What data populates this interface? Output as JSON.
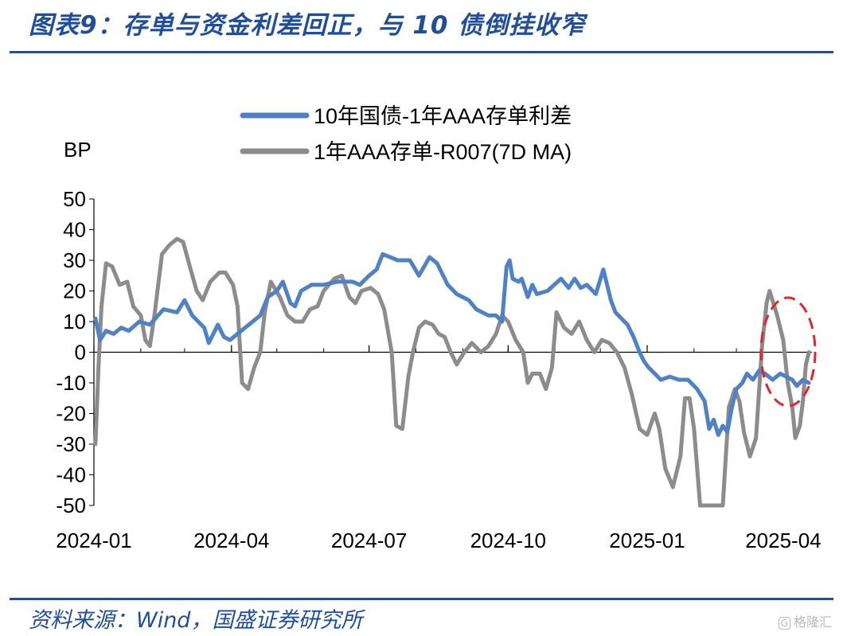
{
  "header": {
    "title": "图表9：存单与资金利差回正，与 10 债倒挂收窄"
  },
  "footer": {
    "source": "资料来源：Wind，国盛证券研究所",
    "watermark": "格隆汇",
    "watermark_glyph": "G"
  },
  "colors": {
    "title": "#1f4e9c",
    "series_blue": "#4f81c7",
    "series_gray": "#8c8c8c",
    "highlight": "#e0262a"
  },
  "chart_data": {
    "type": "line",
    "ylabel": "BP",
    "ylim": [
      -50,
      50
    ],
    "yticks": [
      50,
      40,
      30,
      20,
      10,
      0,
      -10,
      -20,
      -30,
      -40,
      -50
    ],
    "xlim": [
      "2024-01-01",
      "2025-04-20"
    ],
    "xticks": [
      "2024-01",
      "2024-04",
      "2024-07",
      "2024-10",
      "2025-01",
      "2025-04"
    ],
    "grid": false,
    "legend_position": "top",
    "annotation": "dashed red ellipse around latest values (2025-04)",
    "series": [
      {
        "name": "10年国债-1年AAA存单利差",
        "color": "#4f81c7",
        "points": [
          [
            "2024-01-02",
            11
          ],
          [
            "2024-01-05",
            4
          ],
          [
            "2024-01-09",
            7
          ],
          [
            "2024-01-14",
            6
          ],
          [
            "2024-01-19",
            8
          ],
          [
            "2024-01-24",
            7
          ],
          [
            "2024-01-31",
            10
          ],
          [
            "2024-02-07",
            9
          ],
          [
            "2024-02-16",
            14
          ],
          [
            "2024-02-25",
            13
          ],
          [
            "2024-03-01",
            17
          ],
          [
            "2024-03-06",
            12
          ],
          [
            "2024-03-10",
            10
          ],
          [
            "2024-03-14",
            8
          ],
          [
            "2024-03-17",
            3
          ],
          [
            "2024-03-20",
            6
          ],
          [
            "2024-03-23",
            9
          ],
          [
            "2024-03-27",
            5
          ],
          [
            "2024-03-31",
            4
          ],
          [
            "2024-04-05",
            6
          ],
          [
            "2024-04-10",
            8
          ],
          [
            "2024-04-15",
            10
          ],
          [
            "2024-04-20",
            12
          ],
          [
            "2024-04-25",
            18
          ],
          [
            "2024-05-01",
            20
          ],
          [
            "2024-05-05",
            23
          ],
          [
            "2024-05-10",
            16
          ],
          [
            "2024-05-13",
            15
          ],
          [
            "2024-05-17",
            20
          ],
          [
            "2024-05-24",
            22
          ],
          [
            "2024-06-01",
            22
          ],
          [
            "2024-06-10",
            23
          ],
          [
            "2024-06-20",
            23
          ],
          [
            "2024-06-25",
            22
          ],
          [
            "2024-07-01",
            25
          ],
          [
            "2024-07-06",
            27
          ],
          [
            "2024-07-10",
            32
          ],
          [
            "2024-07-15",
            31
          ],
          [
            "2024-07-20",
            30
          ],
          [
            "2024-07-28",
            30
          ],
          [
            "2024-08-03",
            25
          ],
          [
            "2024-08-10",
            31
          ],
          [
            "2024-08-15",
            29
          ],
          [
            "2024-08-22",
            22
          ],
          [
            "2024-08-28",
            19
          ],
          [
            "2024-09-05",
            17
          ],
          [
            "2024-09-10",
            14
          ],
          [
            "2024-09-18",
            12
          ],
          [
            "2024-09-23",
            12
          ],
          [
            "2024-09-27",
            10
          ],
          [
            "2024-09-30",
            28
          ],
          [
            "2024-10-02",
            30
          ],
          [
            "2024-10-04",
            24
          ],
          [
            "2024-10-08",
            23
          ],
          [
            "2024-10-10",
            24
          ],
          [
            "2024-10-14",
            18
          ],
          [
            "2024-10-17",
            22
          ],
          [
            "2024-10-20",
            19
          ],
          [
            "2024-10-27",
            20
          ],
          [
            "2024-11-05",
            24
          ],
          [
            "2024-11-10",
            21
          ],
          [
            "2024-11-14",
            24
          ],
          [
            "2024-11-18",
            21
          ],
          [
            "2024-11-22",
            22
          ],
          [
            "2024-11-28",
            19
          ],
          [
            "2024-12-03",
            27
          ],
          [
            "2024-12-08",
            17
          ],
          [
            "2024-12-11",
            13
          ],
          [
            "2024-12-15",
            11
          ],
          [
            "2024-12-19",
            9
          ],
          [
            "2024-12-23",
            5
          ],
          [
            "2024-12-27",
            0
          ],
          [
            "2024-12-30",
            -3
          ],
          [
            "2025-01-02",
            -5
          ],
          [
            "2025-01-06",
            -7
          ],
          [
            "2025-01-10",
            -9
          ],
          [
            "2025-01-16",
            -8
          ],
          [
            "2025-01-22",
            -9
          ],
          [
            "2025-01-28",
            -9
          ],
          [
            "2025-02-03",
            -12
          ],
          [
            "2025-02-08",
            -16
          ],
          [
            "2025-02-11",
            -25
          ],
          [
            "2025-02-14",
            -22
          ],
          [
            "2025-02-17",
            -27
          ],
          [
            "2025-02-20",
            -24
          ],
          [
            "2025-02-23",
            -26
          ],
          [
            "2025-02-26",
            -18
          ],
          [
            "2025-03-01",
            -12
          ],
          [
            "2025-03-05",
            -10
          ],
          [
            "2025-03-08",
            -7
          ],
          [
            "2025-03-12",
            -9
          ],
          [
            "2025-03-16",
            -6
          ],
          [
            "2025-03-20",
            -7
          ],
          [
            "2025-03-25",
            -9
          ],
          [
            "2025-03-30",
            -7
          ],
          [
            "2025-04-03",
            -8
          ],
          [
            "2025-04-07",
            -9
          ],
          [
            "2025-04-10",
            -11
          ],
          [
            "2025-04-14",
            -9
          ],
          [
            "2025-04-18",
            -10
          ]
        ]
      },
      {
        "name": "1年AAA存单-R007(7D MA)",
        "color": "#8c8c8c",
        "points": [
          [
            "2024-01-02",
            -30
          ],
          [
            "2024-01-04",
            -5
          ],
          [
            "2024-01-06",
            15
          ],
          [
            "2024-01-09",
            29
          ],
          [
            "2024-01-13",
            28
          ],
          [
            "2024-01-18",
            22
          ],
          [
            "2024-01-23",
            23
          ],
          [
            "2024-01-27",
            15
          ],
          [
            "2024-02-01",
            12
          ],
          [
            "2024-02-04",
            4
          ],
          [
            "2024-02-07",
            2
          ],
          [
            "2024-02-10",
            12
          ],
          [
            "2024-02-15",
            32
          ],
          [
            "2024-02-20",
            35
          ],
          [
            "2024-02-25",
            37
          ],
          [
            "2024-02-29",
            36
          ],
          [
            "2024-03-05",
            27
          ],
          [
            "2024-03-09",
            20
          ],
          [
            "2024-03-13",
            17
          ],
          [
            "2024-03-18",
            23
          ],
          [
            "2024-03-24",
            26
          ],
          [
            "2024-03-28",
            26
          ],
          [
            "2024-04-02",
            22
          ],
          [
            "2024-04-05",
            15
          ],
          [
            "2024-04-08",
            -10
          ],
          [
            "2024-04-12",
            -12
          ],
          [
            "2024-04-16",
            -5
          ],
          [
            "2024-04-20",
            0
          ],
          [
            "2024-04-23",
            13
          ],
          [
            "2024-04-27",
            23
          ],
          [
            "2024-05-03",
            18
          ],
          [
            "2024-05-08",
            12
          ],
          [
            "2024-05-13",
            10
          ],
          [
            "2024-05-18",
            10
          ],
          [
            "2024-05-23",
            14
          ],
          [
            "2024-05-28",
            15
          ],
          [
            "2024-06-01",
            20
          ],
          [
            "2024-06-08",
            24
          ],
          [
            "2024-06-13",
            25
          ],
          [
            "2024-06-18",
            18
          ],
          [
            "2024-06-22",
            16
          ],
          [
            "2024-06-26",
            20
          ],
          [
            "2024-07-02",
            21
          ],
          [
            "2024-07-07",
            19
          ],
          [
            "2024-07-11",
            14
          ],
          [
            "2024-07-16",
            0
          ],
          [
            "2024-07-19",
            -24
          ],
          [
            "2024-07-23",
            -25
          ],
          [
            "2024-07-27",
            -8
          ],
          [
            "2024-07-30",
            0
          ],
          [
            "2024-08-03",
            8
          ],
          [
            "2024-08-07",
            10
          ],
          [
            "2024-08-12",
            9
          ],
          [
            "2024-08-16",
            6
          ],
          [
            "2024-08-20",
            5
          ],
          [
            "2024-08-24",
            0
          ],
          [
            "2024-08-28",
            -4
          ],
          [
            "2024-09-02",
            0
          ],
          [
            "2024-09-07",
            3
          ],
          [
            "2024-09-13",
            0
          ],
          [
            "2024-09-18",
            2
          ],
          [
            "2024-09-23",
            6
          ],
          [
            "2024-09-27",
            12
          ],
          [
            "2024-10-01",
            10
          ],
          [
            "2024-10-06",
            4
          ],
          [
            "2024-10-11",
            0
          ],
          [
            "2024-10-14",
            -10
          ],
          [
            "2024-10-17",
            -7
          ],
          [
            "2024-10-22",
            -7
          ],
          [
            "2024-10-26",
            -12
          ],
          [
            "2024-10-30",
            -5
          ],
          [
            "2024-11-02",
            13
          ],
          [
            "2024-11-07",
            8
          ],
          [
            "2024-11-12",
            6
          ],
          [
            "2024-11-17",
            10
          ],
          [
            "2024-11-22",
            4
          ],
          [
            "2024-11-27",
            0
          ],
          [
            "2024-12-02",
            4
          ],
          [
            "2024-12-07",
            3
          ],
          [
            "2024-12-12",
            0
          ],
          [
            "2024-12-17",
            -5
          ],
          [
            "2024-12-22",
            -14
          ],
          [
            "2024-12-27",
            -25
          ],
          [
            "2025-01-01",
            -27
          ],
          [
            "2025-01-06",
            -20
          ],
          [
            "2025-01-09",
            -25
          ],
          [
            "2025-01-13",
            -38
          ],
          [
            "2025-01-18",
            -44
          ],
          [
            "2025-01-23",
            -34
          ],
          [
            "2025-01-26",
            -15
          ],
          [
            "2025-01-29",
            -15
          ],
          [
            "2025-02-01",
            -25
          ],
          [
            "2025-02-05",
            -50
          ],
          [
            "2025-02-20",
            -50
          ],
          [
            "2025-02-24",
            -18
          ],
          [
            "2025-02-28",
            -12
          ],
          [
            "2025-03-03",
            -16
          ],
          [
            "2025-03-06",
            -26
          ],
          [
            "2025-03-10",
            -34
          ],
          [
            "2025-03-14",
            -28
          ],
          [
            "2025-03-18",
            2
          ],
          [
            "2025-03-21",
            16
          ],
          [
            "2025-03-23",
            20
          ],
          [
            "2025-03-28",
            12
          ],
          [
            "2025-04-01",
            4
          ],
          [
            "2025-04-04",
            -10
          ],
          [
            "2025-04-07",
            -18
          ],
          [
            "2025-04-09",
            -28
          ],
          [
            "2025-04-12",
            -24
          ],
          [
            "2025-04-14",
            -16
          ],
          [
            "2025-04-16",
            -4
          ],
          [
            "2025-04-18",
            0
          ]
        ]
      }
    ]
  }
}
